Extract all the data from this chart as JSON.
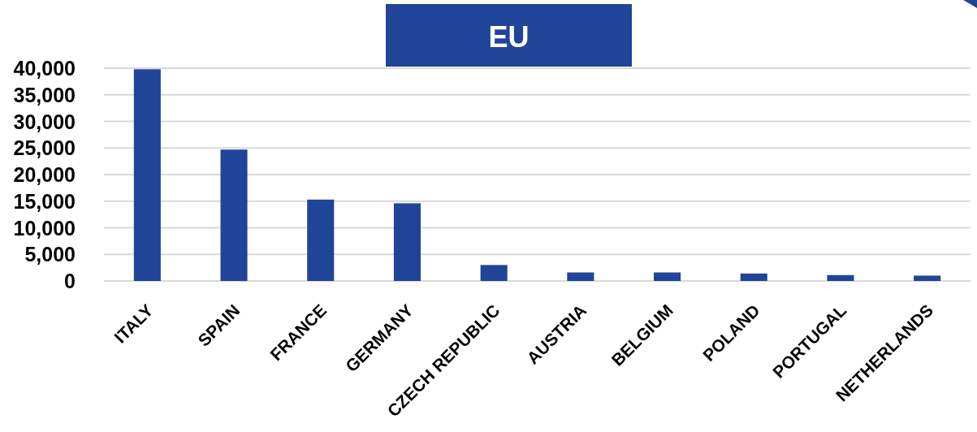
{
  "chart_data": {
    "type": "bar",
    "title": "EU",
    "categories": [
      "ITALY",
      "SPAIN",
      "FRANCE",
      "GERMANY",
      "CZECH REPUBLIC",
      "AUSTRIA",
      "BELGIUM",
      "POLAND",
      "PORTUGAL",
      "NETHERLANDS"
    ],
    "values": [
      39800,
      24700,
      15300,
      14600,
      3000,
      1600,
      1600,
      1400,
      1100,
      1000
    ],
    "color": "#204497",
    "ylim": [
      0,
      40000
    ],
    "yticks": [
      0,
      {
        "value": 5000,
        "label": "5,000"
      },
      {
        "value": 10000,
        "label": "10,000"
      },
      {
        "value": 15000,
        "label": "15,000"
      },
      {
        "value": 20000,
        "label": "20,000"
      },
      {
        "value": 25000,
        "label": "25,000"
      },
      {
        "value": 30000,
        "label": "30,000"
      },
      {
        "value": 35000,
        "label": "35,000"
      },
      {
        "value": 40000,
        "label": "40,000"
      }
    ],
    "grid": "y"
  }
}
